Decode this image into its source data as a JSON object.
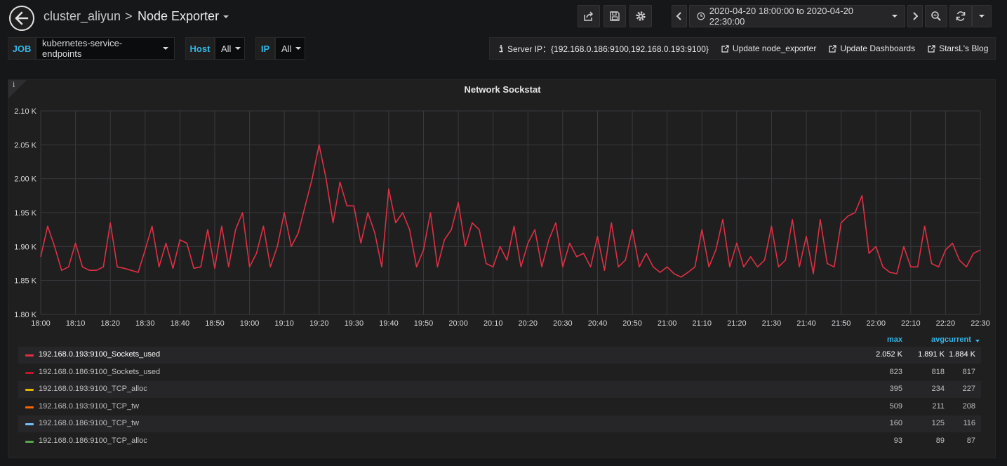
{
  "navbar": {
    "folder": "cluster_aliyun",
    "separator": ">",
    "dashboard_title": "Node Exporter",
    "time_range": "2020-04-20 18:00:00 to 2020-04-20 22:30:00"
  },
  "variables": [
    {
      "label": "JOB",
      "value": "kubernetes-service-endpoints"
    },
    {
      "label": "Host",
      "value": "All"
    },
    {
      "label": "IP",
      "value": "All"
    }
  ],
  "links": {
    "server_ip": "Server IP：{192.168.0.186:9100,192.168.0.193:9100}",
    "update_node_exporter": "Update node_exporter",
    "update_dashboards": "Update Dashboards",
    "blog": "StarsL's Blog"
  },
  "panel": {
    "info": "i",
    "title": "Network Sockstat"
  },
  "colors": {
    "series_red": "#e02f44",
    "series_dark_red": "#c4162a",
    "series_yellow": "#e0b400",
    "series_orange": "#fa6400",
    "series_blue": "#73bff8",
    "series_green": "#56a64b",
    "accent": "#33b5e5"
  },
  "chart_data": {
    "type": "line",
    "title": "Network Sockstat",
    "x_ticks": [
      "18:00",
      "18:10",
      "18:20",
      "18:30",
      "18:40",
      "18:50",
      "19:00",
      "19:10",
      "19:20",
      "19:30",
      "19:40",
      "19:50",
      "20:00",
      "20:10",
      "20:20",
      "20:30",
      "20:40",
      "20:50",
      "21:00",
      "21:10",
      "21:20",
      "21:30",
      "21:40",
      "21:50",
      "22:00",
      "22:10",
      "22:20",
      "22:30"
    ],
    "y_ticks": [
      "1.80 K",
      "1.85 K",
      "1.90 K",
      "1.95 K",
      "2.00 K",
      "2.05 K",
      "2.10 K"
    ],
    "ylim": [
      1800,
      2100
    ],
    "grid": true,
    "series": [
      {
        "name": "192.168.0.193:9100_Sockets_used",
        "x_minutes": [
          0,
          2,
          4,
          6,
          8,
          10,
          12,
          14,
          16,
          18,
          20,
          22,
          24,
          26,
          28,
          30,
          32,
          34,
          36,
          38,
          40,
          42,
          44,
          46,
          48,
          50,
          52,
          54,
          56,
          58,
          60,
          62,
          64,
          66,
          68,
          70,
          72,
          74,
          76,
          78,
          80,
          82,
          84,
          86,
          88,
          90,
          92,
          94,
          96,
          98,
          100,
          102,
          104,
          106,
          108,
          110,
          112,
          114,
          116,
          118,
          120,
          122,
          124,
          126,
          128,
          130,
          132,
          134,
          136,
          138,
          140,
          142,
          144,
          146,
          148,
          150,
          152,
          154,
          156,
          158,
          160,
          162,
          164,
          166,
          168,
          170,
          172,
          174,
          176,
          178,
          180,
          182,
          184,
          186,
          188,
          190,
          192,
          194,
          196,
          198,
          200,
          202,
          204,
          206,
          208,
          210,
          212,
          214,
          216,
          218,
          220,
          222,
          224,
          226,
          228,
          230,
          232,
          234,
          236,
          238,
          240,
          242,
          244,
          246,
          248,
          250,
          252,
          254,
          256,
          258,
          260,
          262,
          264,
          266,
          268,
          270
        ],
        "values": [
          1885,
          1930,
          1900,
          1865,
          1870,
          1905,
          1870,
          1865,
          1865,
          1870,
          1935,
          1870,
          1868,
          1865,
          1862,
          1895,
          1930,
          1870,
          1905,
          1868,
          1910,
          1905,
          1868,
          1870,
          1925,
          1868,
          1930,
          1870,
          1925,
          1950,
          1870,
          1890,
          1930,
          1870,
          1900,
          1950,
          1900,
          1920,
          1960,
          2000,
          2050,
          2000,
          1935,
          1995,
          1960,
          1960,
          1905,
          1950,
          1920,
          1870,
          1985,
          1935,
          1950,
          1925,
          1870,
          1895,
          1950,
          1870,
          1910,
          1925,
          1965,
          1900,
          1935,
          1925,
          1875,
          1870,
          1900,
          1880,
          1930,
          1870,
          1905,
          1925,
          1870,
          1910,
          1935,
          1870,
          1905,
          1885,
          1890,
          1870,
          1915,
          1865,
          1935,
          1870,
          1880,
          1925,
          1870,
          1890,
          1870,
          1862,
          1870,
          1860,
          1855,
          1862,
          1870,
          1925,
          1870,
          1895,
          1940,
          1870,
          1905,
          1870,
          1885,
          1870,
          1880,
          1930,
          1870,
          1880,
          1940,
          1870,
          1915,
          1860,
          1940,
          1875,
          1870,
          1935,
          1945,
          1950,
          1975,
          1890,
          1900,
          1870,
          1862,
          1860,
          1900,
          1870,
          1870,
          1930,
          1875,
          1870,
          1895,
          1905,
          1880,
          1870,
          1890,
          1895
        ]
      }
    ]
  },
  "legend": {
    "headers": {
      "max": "max",
      "avg": "avg",
      "current": "current"
    },
    "rows": [
      {
        "name": "192.168.0.193:9100_Sockets_used",
        "max": "2.052 K",
        "avg": "1.891 K",
        "current": "1.884 K",
        "color": "#e02f44"
      },
      {
        "name": "192.168.0.186:9100_Sockets_used",
        "max": "823",
        "avg": "818",
        "current": "817",
        "color": "#c4162a"
      },
      {
        "name": "192.168.0.193:9100_TCP_alloc",
        "max": "395",
        "avg": "234",
        "current": "227",
        "color": "#e0b400"
      },
      {
        "name": "192.168.0.193:9100_TCP_tw",
        "max": "509",
        "avg": "211",
        "current": "208",
        "color": "#fa6400"
      },
      {
        "name": "192.168.0.186:9100_TCP_tw",
        "max": "160",
        "avg": "125",
        "current": "116",
        "color": "#73bff8"
      },
      {
        "name": "192.168.0.186:9100_TCP_alloc",
        "max": "93",
        "avg": "89",
        "current": "87",
        "color": "#56a64b"
      }
    ]
  }
}
